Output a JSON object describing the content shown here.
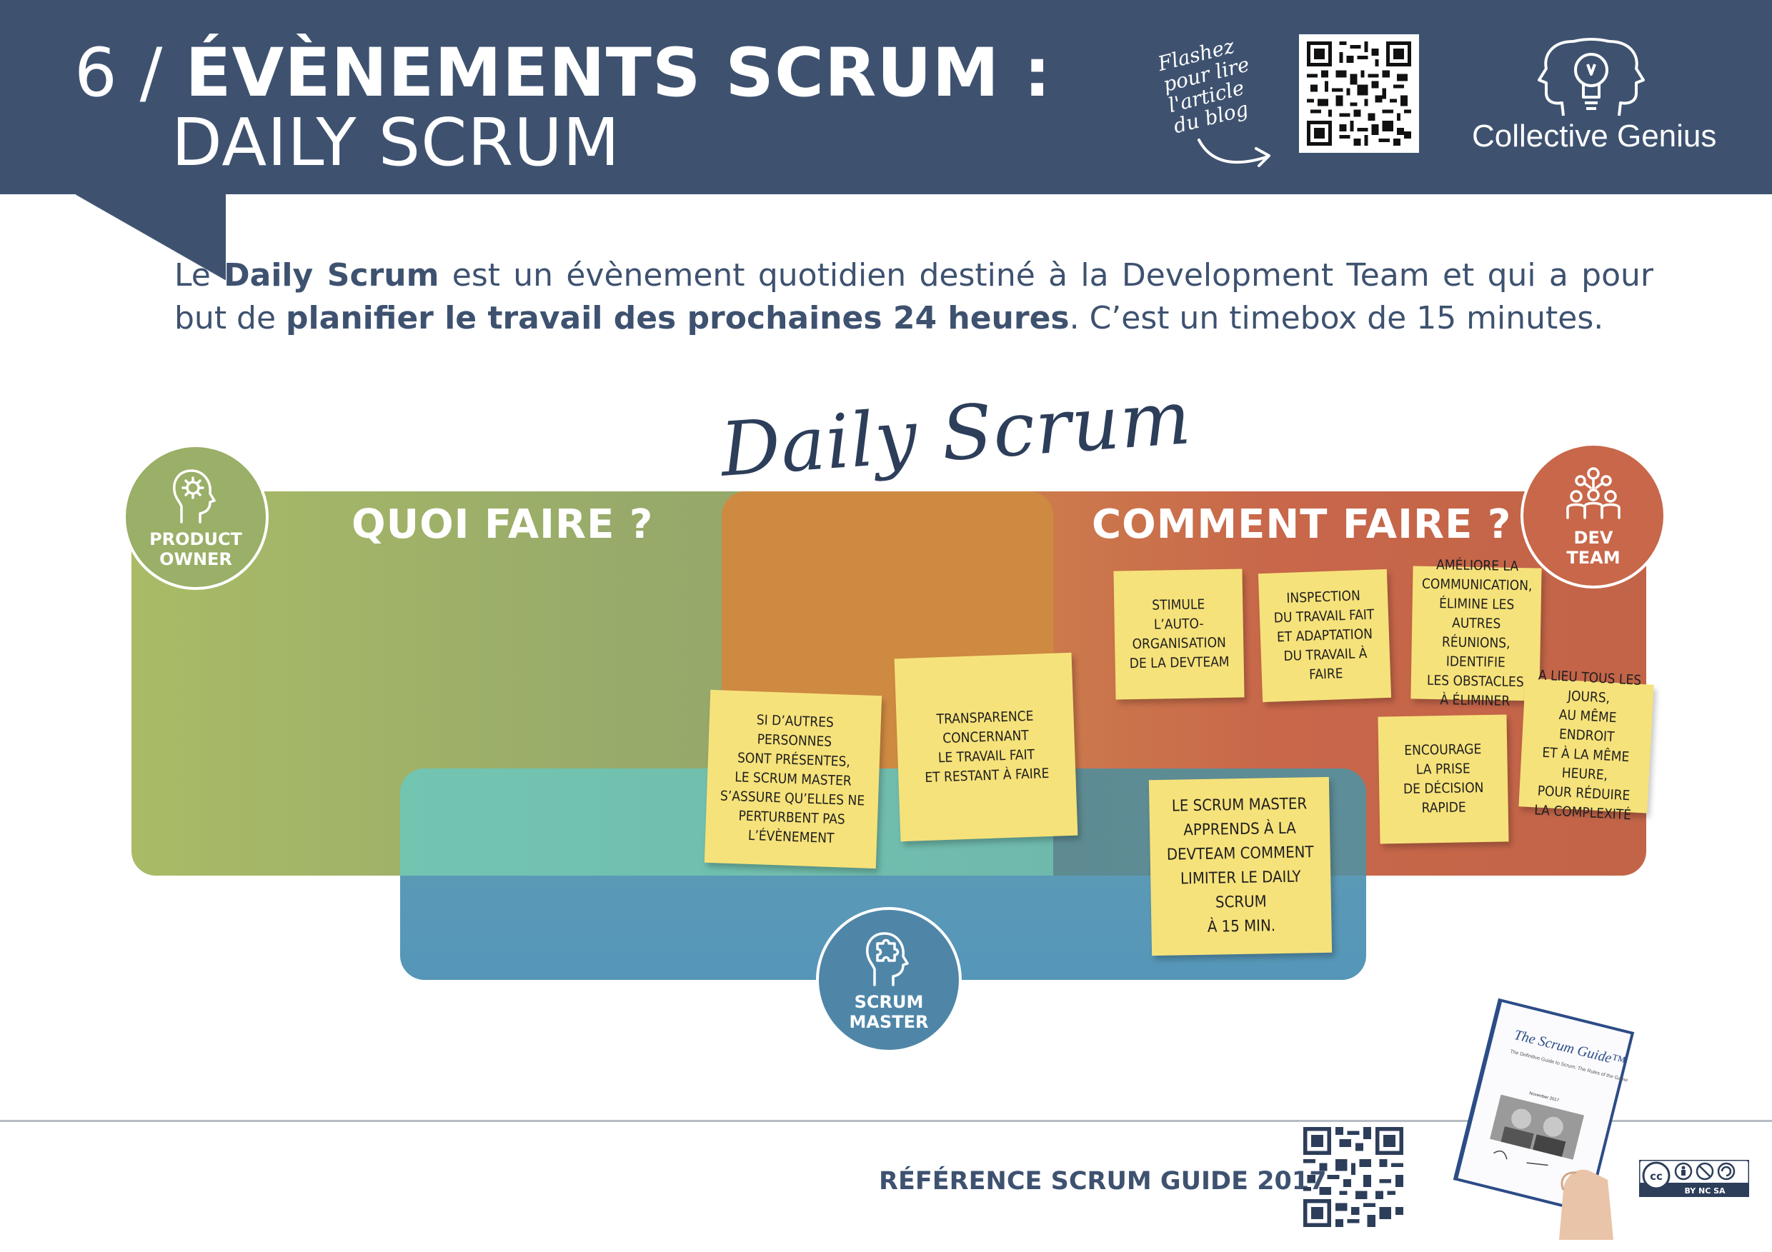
{
  "header": {
    "title_number": "6 /",
    "title_bold": "ÉVÈNEMENTS SCRUM :",
    "title_line2": "DAILY SCRUM",
    "flash_text": "Flashez pour lire l'article du blog",
    "brand_name": "Collective Genius"
  },
  "intro": {
    "part1": "Le ",
    "bold1": "Daily Scrum",
    "part2": " est un évènement quotidien destiné à la Development Team et qui a pour but de ",
    "bold2": "planifier le travail des prochaines 24 heures",
    "part3": ". C’est un timebox de 15 minutes."
  },
  "diagram": {
    "script_title": "Daily Scrum",
    "label_quoi": "QUOI FAIRE ?",
    "label_comment": "COMMENT FAIRE ?",
    "roles": {
      "product_owner": [
        "PRODUCT",
        "OWNER"
      ],
      "dev_team": [
        "DEV",
        "TEAM"
      ],
      "scrum_master": [
        "SCRUM",
        "MASTER"
      ]
    },
    "notes": {
      "autres_personnes": [
        "Si d’autres personnes",
        "sont présentes,",
        "le Scrum Master",
        "s’assure qu’elles ne",
        "perturbent pas",
        "l’évènement"
      ],
      "transparence": [
        "Transparence",
        "concernant",
        "le travail fait",
        "et restant à faire"
      ],
      "stimule": [
        "Stimule",
        "l’auto-organisation",
        "de la DevTeam"
      ],
      "inspection": [
        "Inspection",
        "du travail fait",
        "et adaptation",
        "du travail à faire"
      ],
      "ameliore": [
        "Améliore la",
        "communication,",
        "élimine les autres",
        "réunions, identifie",
        "les obstacles",
        "à éliminer"
      ],
      "encourage": [
        "Encourage",
        "la prise",
        "de décision",
        "rapide"
      ],
      "a_lieu": [
        "A lieu tous les jours,",
        "au même endroit",
        "et à la même heure,",
        "pour réduire",
        "la complexité"
      ],
      "scrum_master_apprend": [
        "Le Scrum Master",
        "apprends à la",
        "DevTeam comment",
        "limiter le Daily Scrum",
        "à 15 min."
      ]
    }
  },
  "footer": {
    "reference": "RÉFÉRENCE SCRUM GUIDE 2017",
    "book_title": "The Scrum Guide™",
    "book_subtitle": "The Definitive Guide to Scrum: The Rules of the Game",
    "book_date": "November 2017",
    "license": "BY NC SA"
  },
  "colors": {
    "header_bg": "#3e5270",
    "green_zone": "#a9bb66",
    "orange_zone": "#c8674a",
    "blue_zone": "#5596b8",
    "sticky_note": "#f6e27a"
  },
  "icons": [
    "qr-code-icon",
    "brain-lightbulb-logo-icon",
    "head-gear-icon",
    "team-icon",
    "head-puzzle-icon",
    "arrow-icon",
    "creative-commons-icon"
  ]
}
